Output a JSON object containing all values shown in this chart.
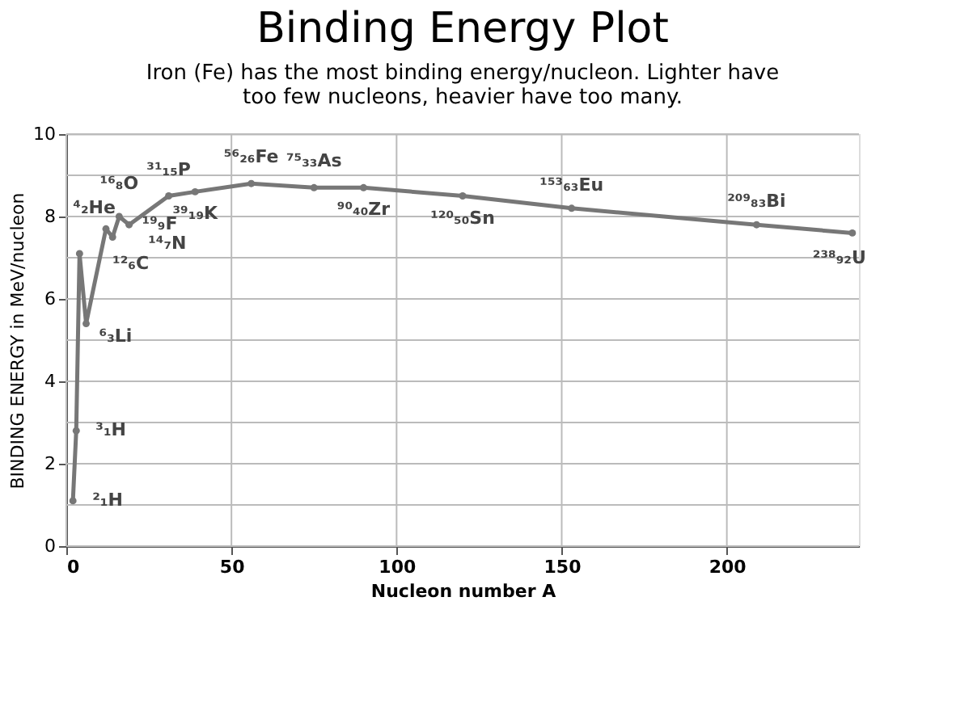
{
  "chart_data": {
    "type": "line",
    "title": "Binding Energy Plot",
    "subtitle": "Iron (Fe) has the most binding energy/nucleon. Lighter have too few nucleons, heavier have too many.",
    "xlabel": "Nucleon number A",
    "ylabel": "BINDING ENERGY in MeV/nucleon",
    "x": [
      2,
      3,
      4,
      6,
      12,
      14,
      16,
      19,
      31,
      39,
      56,
      75,
      90,
      120,
      153,
      209,
      238
    ],
    "series": [
      {
        "color": "#777777",
        "values": [
          1.1,
          2.8,
          7.1,
          5.4,
          7.7,
          7.5,
          8.0,
          7.8,
          8.5,
          8.6,
          8.8,
          8.7,
          8.7,
          8.5,
          8.2,
          7.8,
          7.6
        ]
      }
    ],
    "xlim": [
      0,
      240
    ],
    "ylim": [
      0,
      10
    ],
    "xticks": [
      0,
      50,
      100,
      150,
      200
    ],
    "yticks": [
      0,
      {
        "value": 1,
        "label": null
      },
      2,
      {
        "value": 3,
        "label": null
      },
      4,
      {
        "value": 5,
        "label": null
      },
      6,
      {
        "value": 7,
        "label": null
      },
      8,
      {
        "value": 9,
        "label": null
      },
      10
    ],
    "grid": true,
    "marker": "circle",
    "line_style": "solid",
    "annotations": [
      {
        "text": "²₁H",
        "x": 2,
        "y": 1.1
      },
      {
        "text": "³₁H",
        "x": 3,
        "y": 2.8
      },
      {
        "text": "⁴₂He",
        "x": 4,
        "y": 7.1
      },
      {
        "text": "⁶₃Li",
        "x": 6,
        "y": 5.4
      },
      {
        "text": "¹²₆C",
        "x": 12,
        "y": 7.7
      },
      {
        "text": "¹⁴₇N",
        "x": 14,
        "y": 7.5
      },
      {
        "text": "¹⁶₈O",
        "x": 16,
        "y": 8.0
      },
      {
        "text": "¹⁹₉F",
        "x": 19,
        "y": 7.8
      },
      {
        "text": "³¹₁₅P",
        "x": 31,
        "y": 8.5
      },
      {
        "text": "³⁹₁₉K",
        "x": 39,
        "y": 8.6
      },
      {
        "text": "⁵⁶₂₆Fe",
        "x": 56,
        "y": 8.8
      },
      {
        "text": "⁷⁵₃₃As",
        "x": 75,
        "y": 8.7
      },
      {
        "text": "⁹⁰₄₀Zr",
        "x": 90,
        "y": 8.7
      },
      {
        "text": "¹²⁰₅₀Sn",
        "x": 120,
        "y": 8.5
      },
      {
        "text": "¹⁵³₆₃Eu",
        "x": 153,
        "y": 8.2
      },
      {
        "text": "²⁰⁹₈₃Bi",
        "x": 209,
        "y": 7.8
      },
      {
        "text": "²³⁸₉₂U",
        "x": 238,
        "y": 7.6
      }
    ]
  }
}
